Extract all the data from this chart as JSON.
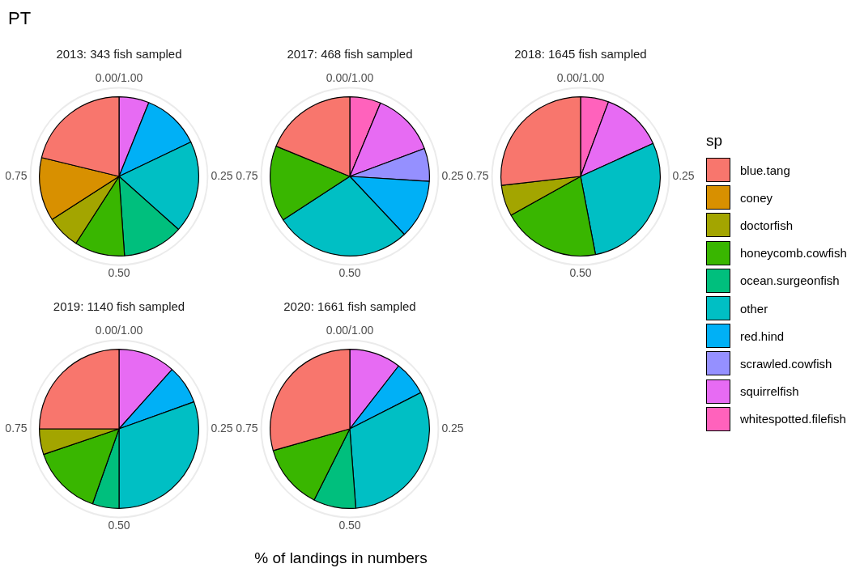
{
  "chart_data": [
    {
      "type": "pie",
      "title": "2013: 343 fish sampled",
      "categories": [
        null,
        null,
        null,
        null,
        null,
        null,
        null,
        null
      ],
      "values": [
        21.2,
        12.9,
        6.8,
        10.2,
        12.3,
        18.7,
        11.8,
        6.1
      ],
      "colors": [
        "#f8766d",
        "#d89000",
        "#a3a500",
        "#39b600",
        "#00bf7d",
        "#00bfc4",
        "#00b0f6",
        "#e76bf3"
      ],
      "annotations": [
        "0.00/1.00",
        "0.25",
        "0.50",
        "0.75"
      ],
      "grid": true
    },
    {
      "type": "pie",
      "title": "2017: 468 fish sampled",
      "categories": [
        null,
        null,
        null,
        null,
        null,
        null,
        null
      ],
      "values": [
        18.8,
        15.4,
        27.8,
        12.0,
        6.7,
        13.0,
        6.3
      ],
      "colors": [
        "#f8766d",
        "#39b600",
        "#00bfc4",
        "#00b0f6",
        "#9590ff",
        "#e76bf3",
        "#ff62bc"
      ],
      "annotations": [
        "0.00/1.00",
        "0.25",
        "0.50",
        "0.75"
      ],
      "grid": true
    },
    {
      "type": "pie",
      "title": "2018: 1645 fish sampled",
      "categories": [
        null,
        null,
        null,
        null,
        null,
        null
      ],
      "values": [
        26.8,
        6.3,
        19.9,
        28.8,
        12.5,
        5.7
      ],
      "colors": [
        "#f8766d",
        "#a3a500",
        "#39b600",
        "#00bfc4",
        "#e76bf3",
        "#ff62bc"
      ],
      "annotations": [
        "0.00/1.00",
        "0.25",
        "0.50",
        "0.75"
      ],
      "grid": true
    },
    {
      "type": "pie",
      "title": "2019: 1140 fish sampled",
      "categories": [
        null,
        null,
        null,
        null,
        null,
        null,
        null
      ],
      "values": [
        25.0,
        5.2,
        14.4,
        5.4,
        30.5,
        7.9,
        11.6
      ],
      "colors": [
        "#f8766d",
        "#a3a500",
        "#39b600",
        "#00bf7d",
        "#00bfc4",
        "#00b0f6",
        "#e76bf3"
      ],
      "annotations": [
        "0.00/1.00",
        "0.25",
        "0.50",
        "0.75"
      ],
      "grid": true
    },
    {
      "type": "pie",
      "title": "2020: 1661 fish sampled",
      "categories": [
        null,
        null,
        null,
        null,
        null,
        null
      ],
      "values": [
        29.4,
        13.2,
        8.6,
        31.3,
        7.0,
        10.5
      ],
      "colors": [
        "#f8766d",
        "#39b600",
        "#00bf7d",
        "#00bfc4",
        "#00b0f6",
        "#e76bf3"
      ],
      "annotations": [
        "0.00/1.00",
        "0.25",
        "0.50",
        "0.75"
      ],
      "grid": true
    },
    {
      "type": "other",
      "title": "PT",
      "xlabel": "% of landings in numbers",
      "legend_title": "sp",
      "categories": [
        "blue.tang",
        "coney",
        "doctorfish",
        "honeycomb.cowfish",
        "ocean.surgeonfish",
        "other",
        "red.hind",
        "scrawled.cowfish",
        "squirrelfish",
        "whitespotted.filefish"
      ],
      "colors": [
        "#f8766d",
        "#d89000",
        "#a3a500",
        "#39b600",
        "#00bf7d",
        "#00bfc4",
        "#00b0f6",
        "#9590ff",
        "#e76bf3",
        "#ff62bc"
      ]
    }
  ]
}
